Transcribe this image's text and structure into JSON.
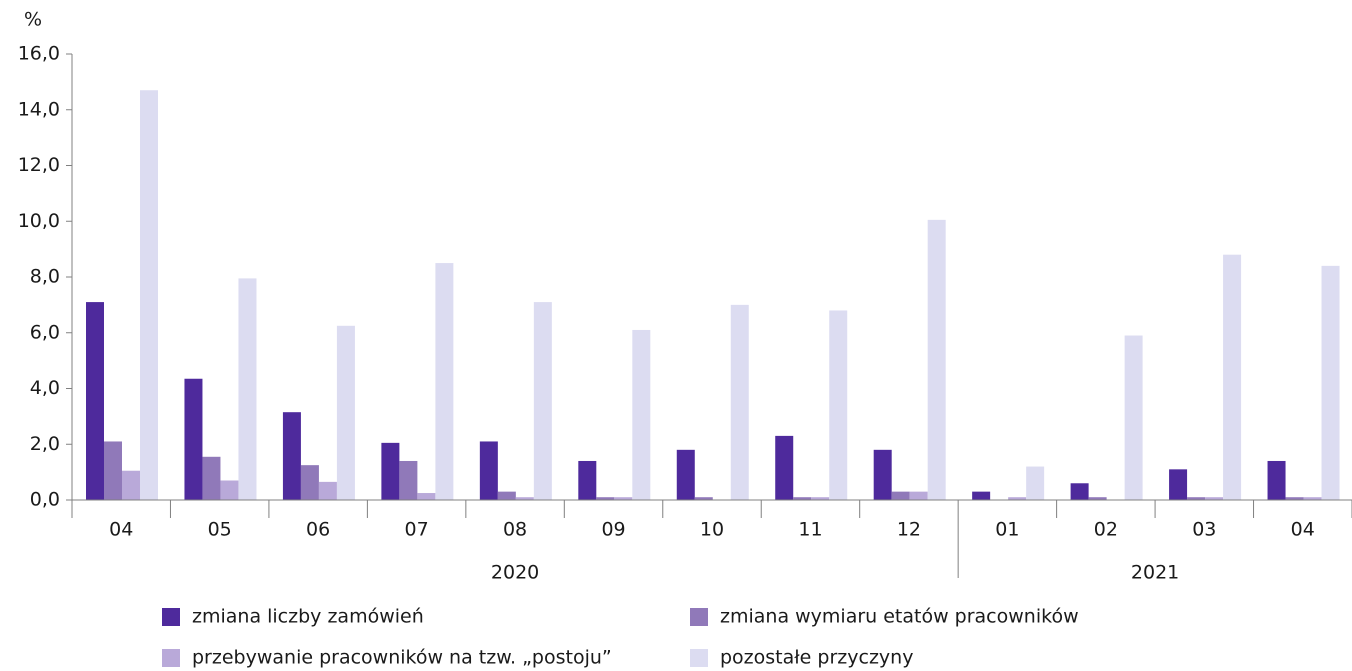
{
  "chart_data": {
    "type": "bar",
    "y_unit": "%",
    "categories": [
      "04",
      "05",
      "06",
      "07",
      "08",
      "09",
      "10",
      "11",
      "12",
      "01",
      "02",
      "03",
      "04"
    ],
    "category_groups": [
      {
        "label": "2020",
        "count": 9
      },
      {
        "label": "2021",
        "count": 4
      }
    ],
    "series": [
      {
        "name": "zmiana liczby zamówień",
        "color": "#4e2a9c",
        "values": [
          7.1,
          4.35,
          3.15,
          2.05,
          2.1,
          1.4,
          1.8,
          2.3,
          1.8,
          0.3,
          0.6,
          1.1,
          1.4
        ]
      },
      {
        "name": "zmiana wymiaru etatów pracowników",
        "color": "#9079b9",
        "values": [
          2.1,
          1.55,
          1.25,
          1.4,
          0.3,
          0.1,
          0.1,
          0.1,
          0.3,
          0.0,
          0.1,
          0.1,
          0.1
        ]
      },
      {
        "name": "przebywanie pracowników na tzw. „postoju”",
        "color": "#b9a9d9",
        "values": [
          1.05,
          0.7,
          0.65,
          0.25,
          0.1,
          0.1,
          0.0,
          0.1,
          0.3,
          0.1,
          0.0,
          0.1,
          0.1
        ]
      },
      {
        "name": "pozostałe przyczyny",
        "color": "#dcdcf1",
        "values": [
          14.7,
          7.95,
          6.25,
          8.5,
          7.1,
          6.1,
          7.0,
          6.8,
          10.05,
          1.2,
          5.9,
          8.8,
          8.4
        ]
      }
    ],
    "ylim": [
      0,
      16
    ],
    "yticks": [
      {
        "value": 0,
        "label": "0,0"
      },
      {
        "value": 2,
        "label": "2,0"
      },
      {
        "value": 4,
        "label": "4,0"
      },
      {
        "value": 6,
        "label": "6,0"
      },
      {
        "value": 8,
        "label": "8,0"
      },
      {
        "value": 10,
        "label": "10,0"
      },
      {
        "value": 12,
        "label": "12,0"
      },
      {
        "value": 14,
        "label": "14,0"
      },
      {
        "value": 16,
        "label": "16,0"
      }
    ],
    "grid": false,
    "legend": "bottom"
  }
}
